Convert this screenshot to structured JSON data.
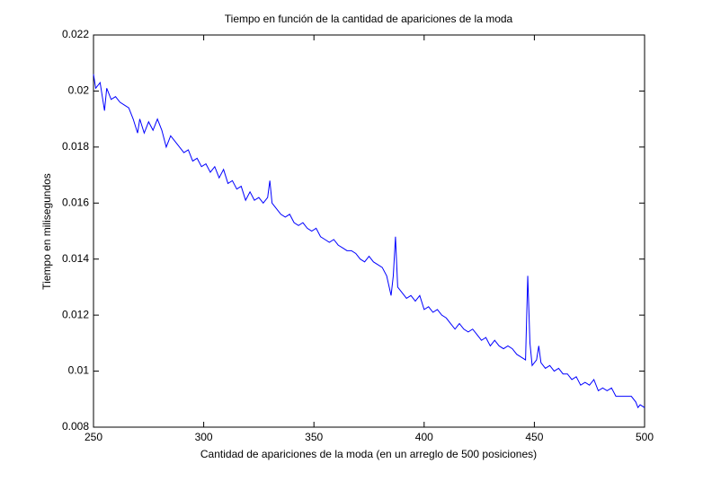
{
  "chart_data": {
    "type": "line",
    "title": "Tiempo en función de la cantidad de apariciones de la moda",
    "xlabel": "Cantidad de apariciones de la moda (en un arreglo de 500 posiciones)",
    "ylabel": "Tiempo en milisegundos",
    "xlim": [
      250,
      500
    ],
    "xticks": [
      250,
      300,
      350,
      400,
      450,
      500
    ],
    "ylim": [
      0.008,
      0.022
    ],
    "yticks": [
      0.008,
      0.01,
      0.012,
      0.014,
      0.016,
      0.018,
      0.02,
      0.022
    ],
    "grid": false,
    "x": [
      250,
      251,
      253,
      255,
      256,
      258,
      260,
      262,
      264,
      266,
      268,
      270,
      271,
      273,
      275,
      277,
      279,
      281,
      283,
      285,
      287,
      289,
      291,
      293,
      295,
      297,
      299,
      301,
      303,
      305,
      307,
      309,
      311,
      313,
      315,
      317,
      319,
      321,
      323,
      325,
      327,
      329,
      330,
      331,
      333,
      335,
      337,
      339,
      341,
      343,
      345,
      347,
      349,
      351,
      353,
      355,
      357,
      359,
      361,
      363,
      365,
      367,
      369,
      371,
      373,
      375,
      377,
      379,
      381,
      383,
      385,
      386,
      387,
      388,
      390,
      392,
      394,
      396,
      398,
      400,
      402,
      404,
      406,
      408,
      410,
      412,
      414,
      416,
      418,
      420,
      422,
      424,
      426,
      428,
      430,
      432,
      434,
      436,
      438,
      440,
      442,
      444,
      446,
      447,
      448,
      449,
      451,
      452,
      453,
      455,
      457,
      459,
      461,
      463,
      465,
      467,
      469,
      471,
      473,
      475,
      477,
      479,
      481,
      483,
      485,
      487,
      490,
      494,
      496,
      497,
      498,
      500
    ],
    "series": [
      {
        "name": "tiempo",
        "color": "#0000ff",
        "values": [
          0.0206,
          0.0201,
          0.0203,
          0.0193,
          0.0201,
          0.0197,
          0.0198,
          0.0196,
          0.0195,
          0.0194,
          0.019,
          0.0185,
          0.019,
          0.0185,
          0.0189,
          0.0186,
          0.019,
          0.0186,
          0.018,
          0.0184,
          0.0182,
          0.018,
          0.0178,
          0.0179,
          0.0175,
          0.0176,
          0.0173,
          0.0174,
          0.0171,
          0.0173,
          0.0169,
          0.0172,
          0.0167,
          0.0168,
          0.0165,
          0.0166,
          0.0161,
          0.0164,
          0.0161,
          0.0162,
          0.016,
          0.0162,
          0.0168,
          0.016,
          0.0158,
          0.0156,
          0.0155,
          0.0156,
          0.0153,
          0.0152,
          0.0153,
          0.0151,
          0.015,
          0.0151,
          0.0148,
          0.0147,
          0.0146,
          0.0147,
          0.0145,
          0.0144,
          0.0143,
          0.0143,
          0.0142,
          0.014,
          0.0139,
          0.0141,
          0.0139,
          0.0138,
          0.0137,
          0.0134,
          0.0127,
          0.0134,
          0.0148,
          0.013,
          0.0128,
          0.0126,
          0.0127,
          0.0125,
          0.0127,
          0.0122,
          0.0123,
          0.0121,
          0.0122,
          0.012,
          0.0119,
          0.0117,
          0.0115,
          0.0117,
          0.0115,
          0.0114,
          0.0115,
          0.0113,
          0.0111,
          0.0112,
          0.0109,
          0.0111,
          0.0109,
          0.0108,
          0.0109,
          0.0108,
          0.0106,
          0.0105,
          0.0104,
          0.0134,
          0.011,
          0.0102,
          0.0104,
          0.0109,
          0.0103,
          0.0101,
          0.0102,
          0.01,
          0.0101,
          0.0099,
          0.0099,
          0.0097,
          0.0098,
          0.0095,
          0.0096,
          0.0095,
          0.0097,
          0.0093,
          0.0094,
          0.0093,
          0.0094,
          0.0091,
          0.0091,
          0.0091,
          0.0089,
          0.0087,
          0.0088,
          0.0087
        ]
      }
    ]
  }
}
